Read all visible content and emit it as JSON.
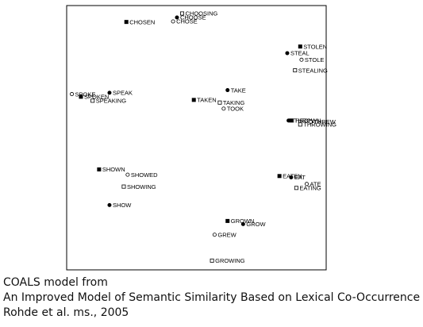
{
  "chart_data": {
    "type": "scatter",
    "title": "",
    "xlabel": "",
    "ylabel": "",
    "xlim": [
      0,
      100
    ],
    "ylim": [
      0,
      100
    ],
    "grid": false,
    "legend": "none",
    "marker_types": [
      "filled-circle",
      "filled-square",
      "open-circle",
      "open-square"
    ],
    "points": [
      {
        "label": "CHOOSING",
        "x": 44.5,
        "y": 97.0,
        "marker": "open-square"
      },
      {
        "label": "CHOOSE",
        "x": 42.5,
        "y": 95.5,
        "marker": "filled-circle"
      },
      {
        "label": "CHOSE",
        "x": 41.0,
        "y": 94.0,
        "marker": "open-circle"
      },
      {
        "label": "CHOSEN",
        "x": 23.0,
        "y": 93.8,
        "marker": "filled-square"
      },
      {
        "label": "STOLEN",
        "x": 90.0,
        "y": 84.5,
        "marker": "filled-square"
      },
      {
        "label": "STEAL",
        "x": 85.0,
        "y": 82.0,
        "marker": "filled-circle"
      },
      {
        "label": "STOLE",
        "x": 90.5,
        "y": 79.5,
        "marker": "open-circle"
      },
      {
        "label": "STEALING",
        "x": 88.0,
        "y": 75.5,
        "marker": "open-square"
      },
      {
        "label": "SPOKE",
        "x": 2.0,
        "y": 66.5,
        "marker": "open-circle"
      },
      {
        "label": "SPEAK",
        "x": 16.5,
        "y": 67.0,
        "marker": "filled-circle"
      },
      {
        "label": "SPOKEN",
        "x": 5.5,
        "y": 65.5,
        "marker": "filled-square"
      },
      {
        "label": "SPEAKING",
        "x": 10.0,
        "y": 64.0,
        "marker": "open-square"
      },
      {
        "label": "TAKE",
        "x": 62.0,
        "y": 68.0,
        "marker": "filled-circle"
      },
      {
        "label": "TAKEN",
        "x": 49.0,
        "y": 64.3,
        "marker": "filled-square"
      },
      {
        "label": "TAKING",
        "x": 59.0,
        "y": 63.3,
        "marker": "open-square"
      },
      {
        "label": "TOOK",
        "x": 60.5,
        "y": 61.0,
        "marker": "open-circle"
      },
      {
        "label": "THROW",
        "x": 85.5,
        "y": 56.5,
        "marker": "filled-circle"
      },
      {
        "label": "THROWN",
        "x": 86.5,
        "y": 56.5,
        "marker": "filled-square"
      },
      {
        "label": "THREW",
        "x": 94.0,
        "y": 56.0,
        "marker": "open-circle"
      },
      {
        "label": "THROWING",
        "x": 90.0,
        "y": 55.0,
        "marker": "open-square"
      },
      {
        "label": "SHOWN",
        "x": 12.5,
        "y": 38.0,
        "marker": "filled-square"
      },
      {
        "label": "SHOWED",
        "x": 23.5,
        "y": 36.0,
        "marker": "open-circle"
      },
      {
        "label": "SHOWING",
        "x": 22.0,
        "y": 31.5,
        "marker": "open-square"
      },
      {
        "label": "EATEN",
        "x": 82.0,
        "y": 35.5,
        "marker": "filled-square"
      },
      {
        "label": "EAT",
        "x": 86.5,
        "y": 35.0,
        "marker": "filled-circle"
      },
      {
        "label": "ATE",
        "x": 92.5,
        "y": 32.5,
        "marker": "open-circle"
      },
      {
        "label": "EATING",
        "x": 88.5,
        "y": 31.0,
        "marker": "open-square"
      },
      {
        "label": "SHOW",
        "x": 16.5,
        "y": 24.5,
        "marker": "filled-circle"
      },
      {
        "label": "GROWN",
        "x": 62.0,
        "y": 18.5,
        "marker": "filled-square"
      },
      {
        "label": "GROW",
        "x": 68.0,
        "y": 17.3,
        "marker": "filled-circle"
      },
      {
        "label": "GREW",
        "x": 57.0,
        "y": 13.3,
        "marker": "open-circle"
      },
      {
        "label": "GROWING",
        "x": 56.0,
        "y": 3.5,
        "marker": "open-square"
      }
    ]
  },
  "caption": {
    "line1": "COALS model from",
    "line2": "An Improved Model of Semantic Similarity Based on Lexical Co-Occurrence",
    "line3": "Rohde et al. ms., 2005"
  }
}
